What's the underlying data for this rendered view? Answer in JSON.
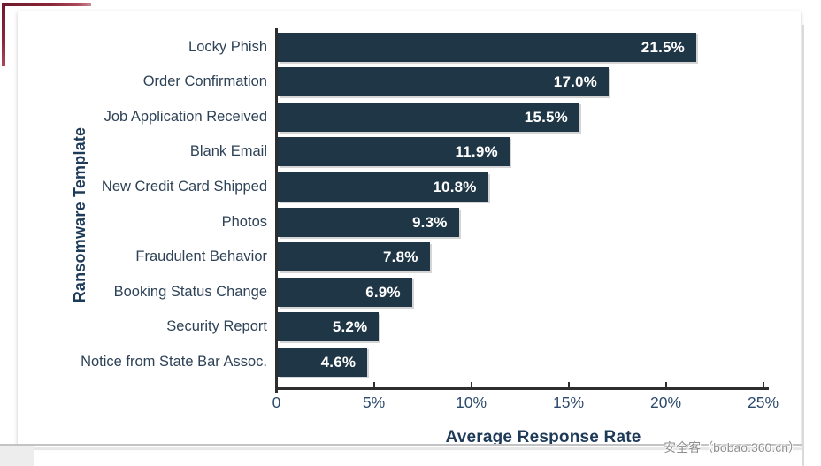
{
  "page": {
    "watermark": "安全客（bobao.360.cn）"
  },
  "chart_data": {
    "type": "bar",
    "orientation": "horizontal",
    "title": "",
    "xlabel": "Average Response Rate",
    "ylabel": "Ransomware Template",
    "categories": [
      "Locky Phish",
      "Order Confirmation",
      "Job Application Received",
      "Blank Email",
      "New Credit Card Shipped",
      "Photos",
      "Fraudulent Behavior",
      "Booking Status Change",
      "Security Report",
      "Notice from State Bar Assoc."
    ],
    "values": [
      21.5,
      17.0,
      15.5,
      11.9,
      10.8,
      9.3,
      7.8,
      6.9,
      5.2,
      4.6
    ],
    "value_labels": [
      "21.5%",
      "17.0%",
      "15.5%",
      "11.9%",
      "10.8%",
      "9.3%",
      "7.8%",
      "6.9%",
      "5.2%",
      "4.6%"
    ],
    "x_ticks": [
      {
        "value": 0,
        "label": "0"
      },
      {
        "value": 5,
        "label": "5%"
      },
      {
        "value": 10,
        "label": "10%"
      },
      {
        "value": 15,
        "label": "15%"
      },
      {
        "value": 20,
        "label": "20%"
      },
      {
        "value": 25,
        "label": "25%"
      }
    ],
    "xlim": [
      0,
      25
    ],
    "grid": false,
    "legend": null,
    "colors": {
      "bar": "#1f3647",
      "value_label": "#ffffff",
      "category_label": "#2e4257",
      "tick_label": "#2c4a6c",
      "axis_title": "#1e3a59",
      "axis_line": "#2e2e2e"
    }
  },
  "decorations": {
    "corner_bracket_color": "#8b2638"
  }
}
